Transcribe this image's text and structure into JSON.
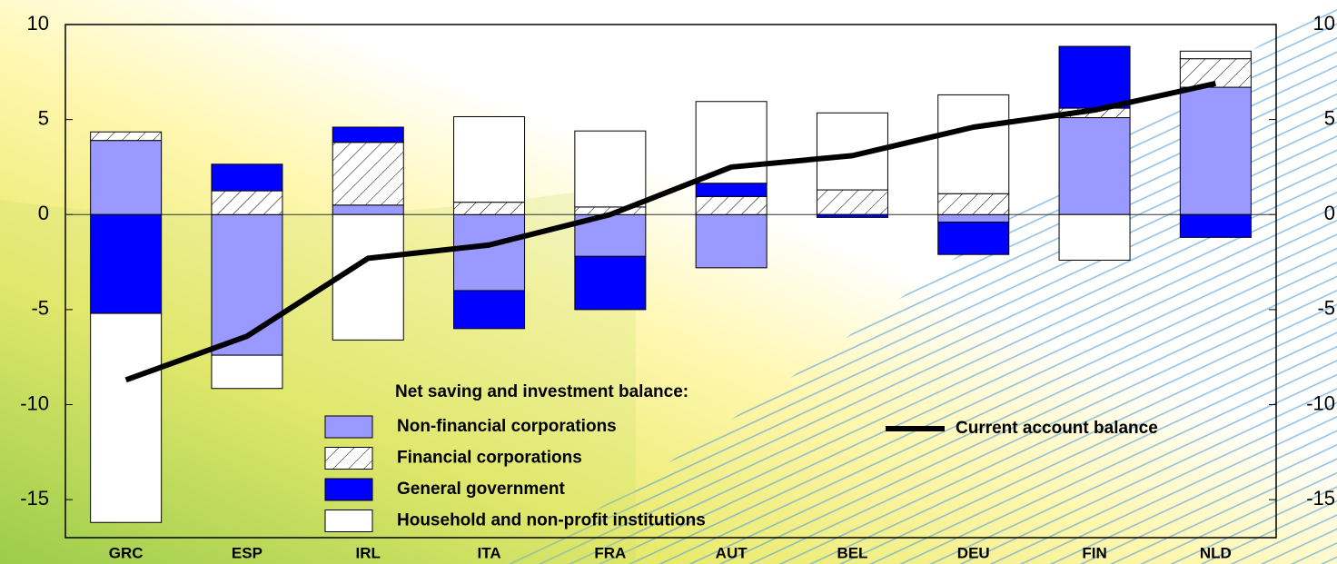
{
  "chart_data": {
    "type": "bar",
    "stacked": true,
    "categories": [
      "GRC",
      "ESP",
      "IRL",
      "ITA",
      "FRA",
      "AUT",
      "BEL",
      "DEU",
      "FIN",
      "NLD"
    ],
    "legend_title": "Net saving and investment balance:",
    "series": [
      {
        "name": "Non-financial corporations",
        "type": "bar",
        "color": "#9999ff",
        "values": [
          3.9,
          -7.4,
          0.5,
          -4.0,
          -2.2,
          -2.8,
          0,
          -0.4,
          5.1,
          6.7
        ]
      },
      {
        "name": "Financial corporations",
        "type": "bar",
        "color": "#ffffff",
        "hatch": true,
        "values": [
          0.45,
          1.25,
          3.3,
          0.65,
          0.4,
          0.95,
          1.3,
          1.1,
          0.5,
          1.5
        ]
      },
      {
        "name": "General government",
        "type": "bar",
        "color": "#0000ff",
        "values": [
          -5.2,
          1.4,
          0.8,
          -2.0,
          -2.8,
          0.7,
          -0.15,
          -1.7,
          3.25,
          -1.2
        ]
      },
      {
        "name": "Household and non-profit institutions",
        "type": "bar",
        "color": "#ffffff",
        "values": [
          -11.0,
          -1.75,
          -6.6,
          4.5,
          4.0,
          4.3,
          4.05,
          5.2,
          -2.4,
          0.4
        ]
      },
      {
        "name": "Current account balance",
        "type": "line",
        "color": "#000000",
        "values": [
          -8.7,
          -6.4,
          -2.3,
          -1.6,
          0,
          2.5,
          3.1,
          4.6,
          5.5,
          6.9
        ]
      }
    ],
    "ylim": [
      -17,
      10
    ],
    "yticks": [
      10,
      5,
      0,
      -5,
      -10,
      -15
    ],
    "y2lim": [
      -17,
      10
    ],
    "y2ticks": [
      10,
      5,
      0,
      -5,
      -10,
      -15
    ]
  }
}
